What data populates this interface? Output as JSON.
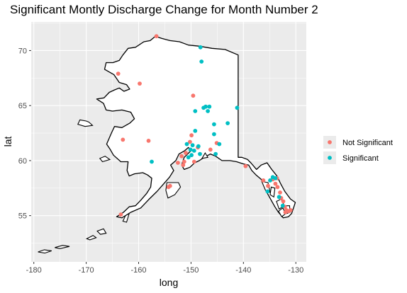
{
  "chart_data": {
    "type": "scatter",
    "title": "Significant Montly Discharge Change for Month Number 2",
    "xlabel": "long",
    "ylabel": "lat",
    "xlim": [
      -180.5,
      -128
    ],
    "ylim": [
      50.8,
      72.6
    ],
    "x_ticks": [
      -180,
      -170,
      -160,
      -150,
      -140,
      -130
    ],
    "x_tick_labels": [
      "-180",
      "-170",
      "-160",
      "-150",
      "-140",
      "-130"
    ],
    "y_ticks": [
      55,
      60,
      65,
      70
    ],
    "y_tick_labels": [
      "55",
      "60",
      "65",
      "70"
    ],
    "grid": true,
    "legend_position": "right",
    "basemap": "Alaska coastline outline",
    "series": [
      {
        "name": "Not Significant",
        "color": "#F8766D",
        "points": [
          {
            "x": -156.6,
            "y": 71.3
          },
          {
            "x": -163.9,
            "y": 67.9
          },
          {
            "x": -159.8,
            "y": 67.0
          },
          {
            "x": -149.6,
            "y": 65.9
          },
          {
            "x": -163.0,
            "y": 61.9
          },
          {
            "x": -158.1,
            "y": 61.8
          },
          {
            "x": -149.9,
            "y": 62.3
          },
          {
            "x": -148.7,
            "y": 61.2
          },
          {
            "x": -146.3,
            "y": 61.0
          },
          {
            "x": -145.1,
            "y": 61.6
          },
          {
            "x": -150.2,
            "y": 61.7
          },
          {
            "x": -151.0,
            "y": 60.7
          },
          {
            "x": -151.8,
            "y": 60.4
          },
          {
            "x": -151.3,
            "y": 59.9
          },
          {
            "x": -151.5,
            "y": 59.6
          },
          {
            "x": -149.4,
            "y": 59.9
          },
          {
            "x": -152.5,
            "y": 59.8
          },
          {
            "x": -154.3,
            "y": 57.6
          },
          {
            "x": -154.0,
            "y": 57.7
          },
          {
            "x": -163.4,
            "y": 55.1
          },
          {
            "x": -139.6,
            "y": 59.5
          },
          {
            "x": -136.2,
            "y": 58.2
          },
          {
            "x": -135.3,
            "y": 57.7
          },
          {
            "x": -134.4,
            "y": 58.3
          },
          {
            "x": -133.9,
            "y": 57.9
          },
          {
            "x": -133.6,
            "y": 58.4
          },
          {
            "x": -133.5,
            "y": 57.6
          },
          {
            "x": -133.0,
            "y": 57.1
          },
          {
            "x": -132.8,
            "y": 56.6
          },
          {
            "x": -132.4,
            "y": 56.3
          },
          {
            "x": -132.1,
            "y": 55.8
          },
          {
            "x": -131.8,
            "y": 55.5
          },
          {
            "x": -131.4,
            "y": 55.4
          },
          {
            "x": -131.0,
            "y": 55.5
          },
          {
            "x": -132.0,
            "y": 55.3
          }
        ]
      },
      {
        "name": "Significant",
        "color": "#00BFC4",
        "points": [
          {
            "x": -148.2,
            "y": 70.3
          },
          {
            "x": -148.0,
            "y": 69.0
          },
          {
            "x": -149.2,
            "y": 64.5
          },
          {
            "x": -147.6,
            "y": 64.8
          },
          {
            "x": -147.2,
            "y": 64.9
          },
          {
            "x": -146.5,
            "y": 64.9
          },
          {
            "x": -146.8,
            "y": 64.5
          },
          {
            "x": -141.2,
            "y": 64.8
          },
          {
            "x": -145.6,
            "y": 63.3
          },
          {
            "x": -145.6,
            "y": 62.4
          },
          {
            "x": -143.0,
            "y": 63.4
          },
          {
            "x": -149.2,
            "y": 62.7
          },
          {
            "x": -144.6,
            "y": 61.5
          },
          {
            "x": -148.6,
            "y": 61.3
          },
          {
            "x": -149.7,
            "y": 61.4
          },
          {
            "x": -150.1,
            "y": 61.0
          },
          {
            "x": -150.8,
            "y": 61.5
          },
          {
            "x": -149.4,
            "y": 60.9
          },
          {
            "x": -145.3,
            "y": 60.6
          },
          {
            "x": -148.3,
            "y": 60.6
          },
          {
            "x": -149.9,
            "y": 60.5
          },
          {
            "x": -150.5,
            "y": 60.3
          },
          {
            "x": -157.5,
            "y": 59.9
          },
          {
            "x": -134.9,
            "y": 58.2
          },
          {
            "x": -134.4,
            "y": 58.5
          },
          {
            "x": -133.9,
            "y": 58.4
          },
          {
            "x": -135.4,
            "y": 57.2
          },
          {
            "x": -133.2,
            "y": 56.7
          },
          {
            "x": -132.5,
            "y": 55.9
          }
        ]
      }
    ]
  }
}
